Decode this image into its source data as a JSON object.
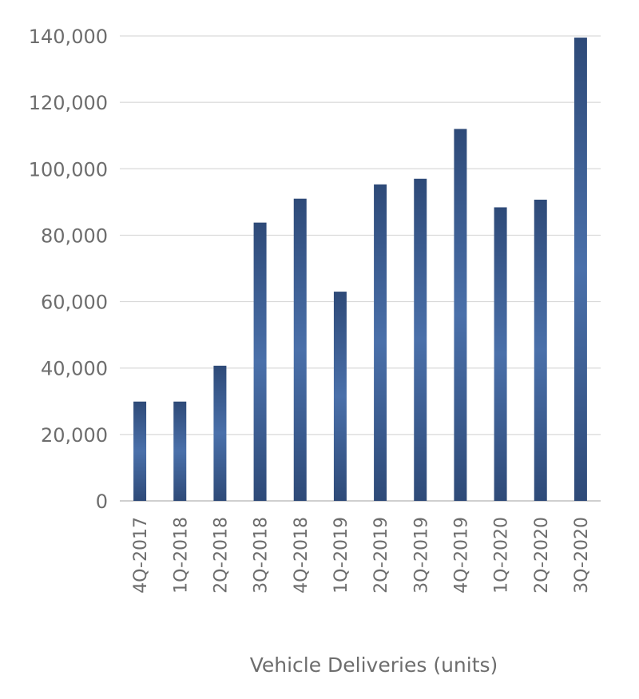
{
  "chart_data": {
    "type": "bar",
    "title": "",
    "xlabel": "Vehicle Deliveries (units)",
    "ylabel": "",
    "ylim": [
      0,
      140000
    ],
    "y_ticks": [
      0,
      20000,
      40000,
      60000,
      80000,
      100000,
      120000,
      140000
    ],
    "y_tick_labels": [
      "0",
      "20,000",
      "40,000",
      "60,000",
      "80,000",
      "100,000",
      "120,000",
      "140,000"
    ],
    "grid": true,
    "legend": "none",
    "categories": [
      "4Q-2017",
      "1Q-2018",
      "2Q-2018",
      "3Q-2018",
      "4Q-2018",
      "1Q-2019",
      "2Q-2019",
      "3Q-2019",
      "4Q-2019",
      "1Q-2020",
      "2Q-2020",
      "3Q-2020"
    ],
    "values": [
      29900,
      29900,
      40700,
      83800,
      91000,
      63000,
      95300,
      97000,
      112000,
      88400,
      90700,
      139500
    ],
    "colors": {
      "bar_dark": "#2e4a78",
      "bar_light": "#4a70aa",
      "grid": "#d9d9d9",
      "text": "#6d6d6d"
    }
  }
}
